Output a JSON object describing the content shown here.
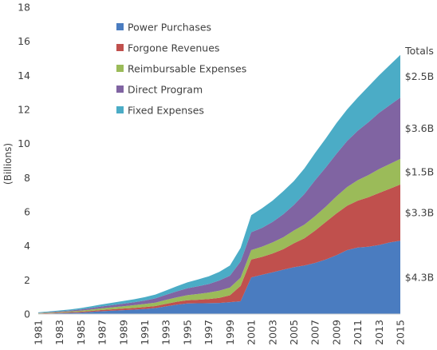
{
  "chart_data": {
    "type": "area",
    "stacked": true,
    "ylabel": "(Billions)",
    "xlabel": "",
    "ylim": [
      0,
      18
    ],
    "yticks": [
      0,
      2,
      4,
      6,
      8,
      10,
      12,
      14,
      16,
      18
    ],
    "xlim": [
      1981,
      2015
    ],
    "xticks": [
      1981,
      1983,
      1985,
      1987,
      1989,
      1991,
      1993,
      1995,
      1997,
      1999,
      2001,
      2003,
      2005,
      2007,
      2009,
      2011,
      2013,
      2015
    ],
    "grid": false,
    "legend_placement": "top-left",
    "x": [
      1981,
      1982,
      1983,
      1984,
      1985,
      1986,
      1987,
      1988,
      1989,
      1990,
      1991,
      1992,
      1993,
      1994,
      1995,
      1996,
      1997,
      1998,
      1999,
      2000,
      2001,
      2002,
      2003,
      2004,
      2005,
      2006,
      2007,
      2008,
      2009,
      2010,
      2011,
      2012,
      2013,
      2014,
      2015
    ],
    "series": [
      {
        "name": "Power Purchases",
        "color": "#4a7cc0",
        "values": [
          0.02,
          0.03,
          0.05,
          0.07,
          0.09,
          0.13,
          0.17,
          0.2,
          0.23,
          0.26,
          0.3,
          0.35,
          0.45,
          0.55,
          0.62,
          0.63,
          0.64,
          0.65,
          0.7,
          0.75,
          2.15,
          2.3,
          2.45,
          2.6,
          2.75,
          2.85,
          3.0,
          3.2,
          3.45,
          3.75,
          3.9,
          3.95,
          4.05,
          4.2,
          4.3
        ]
      },
      {
        "name": "Forgone Revenues",
        "color": "#c0504d",
        "values": [
          0.01,
          0.02,
          0.03,
          0.04,
          0.05,
          0.06,
          0.07,
          0.08,
          0.09,
          0.1,
          0.11,
          0.12,
          0.15,
          0.17,
          0.19,
          0.21,
          0.24,
          0.3,
          0.4,
          0.9,
          1.05,
          1.05,
          1.1,
          1.2,
          1.4,
          1.6,
          1.9,
          2.2,
          2.45,
          2.6,
          2.75,
          2.9,
          3.05,
          3.15,
          3.3
        ]
      },
      {
        "name": "Reimbursable Expenses",
        "color": "#9bbb59",
        "values": [
          0.02,
          0.03,
          0.04,
          0.05,
          0.06,
          0.08,
          0.1,
          0.12,
          0.14,
          0.16,
          0.18,
          0.2,
          0.23,
          0.26,
          0.3,
          0.34,
          0.38,
          0.42,
          0.45,
          0.48,
          0.55,
          0.6,
          0.65,
          0.7,
          0.75,
          0.8,
          0.85,
          0.9,
          1.0,
          1.1,
          1.2,
          1.3,
          1.4,
          1.45,
          1.5
        ]
      },
      {
        "name": "Direct Program",
        "color": "#8064a2",
        "values": [
          0.02,
          0.03,
          0.04,
          0.05,
          0.07,
          0.09,
          0.11,
          0.13,
          0.15,
          0.17,
          0.2,
          0.25,
          0.3,
          0.35,
          0.4,
          0.45,
          0.5,
          0.6,
          0.7,
          0.95,
          1.05,
          1.1,
          1.2,
          1.35,
          1.5,
          1.8,
          2.1,
          2.3,
          2.5,
          2.7,
          2.9,
          3.1,
          3.3,
          3.45,
          3.6
        ]
      },
      {
        "name": "Fixed Expenses",
        "color": "#4bacc6",
        "values": [
          0.03,
          0.04,
          0.05,
          0.06,
          0.08,
          0.1,
          0.12,
          0.14,
          0.16,
          0.18,
          0.2,
          0.22,
          0.25,
          0.3,
          0.35,
          0.4,
          0.45,
          0.5,
          0.6,
          0.8,
          1.0,
          1.15,
          1.25,
          1.35,
          1.4,
          1.5,
          1.6,
          1.7,
          1.8,
          1.85,
          1.95,
          2.1,
          2.2,
          2.35,
          2.5
        ]
      }
    ],
    "totals_title": "Totals",
    "totals": [
      "$2.5B",
      "$3.6B",
      "$1.5B",
      "$3.3B",
      "$4.3B"
    ]
  }
}
